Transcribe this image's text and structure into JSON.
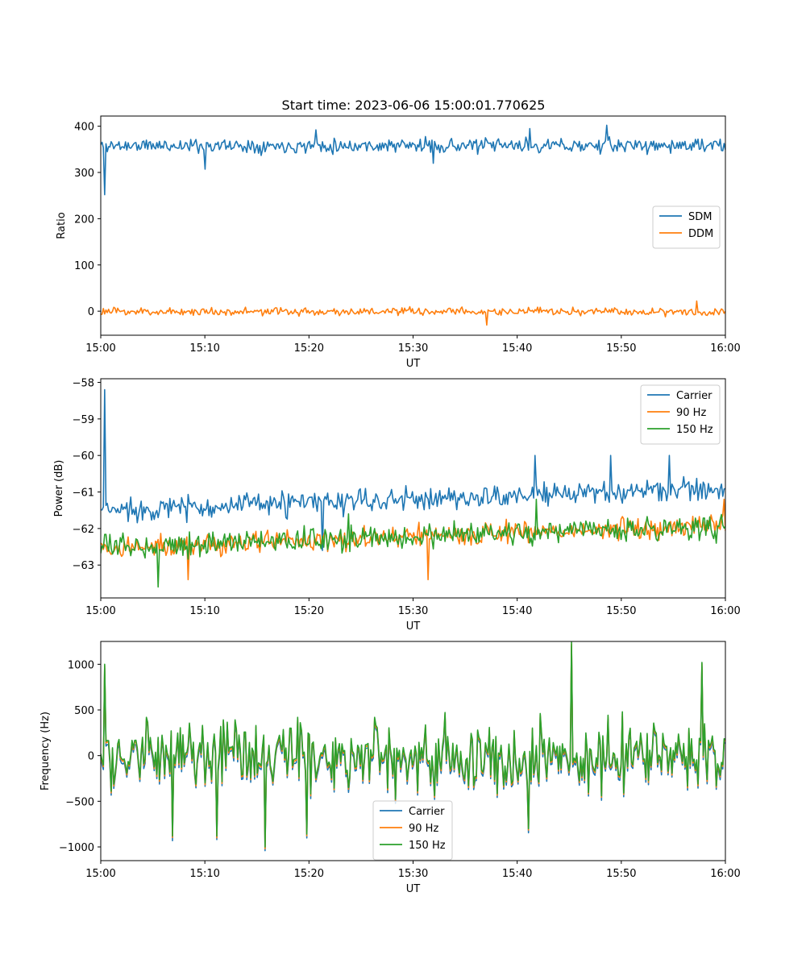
{
  "figure": {
    "title": "Start time: 2023-06-06 15:00:01.770625"
  },
  "chart_data": [
    {
      "type": "line",
      "xlabel": "UT",
      "ylabel": "Ratio",
      "xlim": [
        "15:00",
        "16:00"
      ],
      "ylim": [
        -52,
        422
      ],
      "xticks": [
        "15:00",
        "15:10",
        "15:20",
        "15:30",
        "15:40",
        "15:50",
        "16:00"
      ],
      "yticks": [
        0,
        100,
        200,
        300,
        400
      ],
      "yticklabels": [
        "0",
        "100",
        "200",
        "300",
        "400"
      ],
      "legend_position": "center-right",
      "series": [
        {
          "name": "SDM",
          "color": "#1f77b4",
          "mean": 358,
          "noise": 14,
          "seed": 11,
          "features": [
            {
              "t": 0.35,
              "v": 252
            },
            {
              "t": 10.0,
              "v": 307
            },
            {
              "t": 20.7,
              "v": 392
            },
            {
              "t": 41.2,
              "v": 395
            },
            {
              "t": 48.6,
              "v": 402
            },
            {
              "t": 32.0,
              "v": 320
            }
          ]
        },
        {
          "name": "DDM",
          "color": "#ff7f0e",
          "mean": -1,
          "noise": 8,
          "seed": 23,
          "features": [
            {
              "t": 37.1,
              "v": -30
            },
            {
              "t": 57.3,
              "v": 22
            }
          ]
        }
      ]
    },
    {
      "type": "line",
      "xlabel": "UT",
      "ylabel": "Power (dB)",
      "xlim": [
        "15:00",
        "16:00"
      ],
      "ylim": [
        -63.9,
        -57.9
      ],
      "xticks": [
        "15:00",
        "15:10",
        "15:20",
        "15:30",
        "15:40",
        "15:50",
        "16:00"
      ],
      "yticks": [
        -63,
        -62,
        -61,
        -60,
        -59,
        -58
      ],
      "yticklabels": [
        "−63",
        "−62",
        "−61",
        "−60",
        "−59",
        "−58"
      ],
      "legend_position": "upper-right",
      "series": [
        {
          "name": "Carrier",
          "color": "#1f77b4",
          "start": -61.5,
          "end": -60.9,
          "noise": 0.3,
          "seed": 37,
          "features": [
            {
              "t": 0.35,
              "v": -58.2
            },
            {
              "t": 41.7,
              "v": -60.0
            },
            {
              "t": 49.0,
              "v": -60.0
            },
            {
              "t": 54.6,
              "v": -60.0
            },
            {
              "t": 21.3,
              "v": -62.6
            }
          ]
        },
        {
          "name": "90 Hz",
          "color": "#ff7f0e",
          "start": -62.55,
          "end": -61.9,
          "noise": 0.28,
          "seed": 41,
          "features": [
            {
              "t": 31.4,
              "v": -63.4
            },
            {
              "t": 8.4,
              "v": -63.4
            },
            {
              "t": 59.9,
              "v": -61.2
            }
          ]
        },
        {
          "name": "150 Hz",
          "color": "#2ca02c",
          "start": -62.5,
          "end": -61.95,
          "noise": 0.3,
          "seed": 53,
          "features": [
            {
              "t": 5.5,
              "v": -63.6
            },
            {
              "t": 41.8,
              "v": -61.2
            },
            {
              "t": 23.8,
              "v": -61.6
            }
          ]
        }
      ]
    },
    {
      "type": "line",
      "xlabel": "UT",
      "ylabel": "Frequency (Hz)",
      "xlim": [
        "15:00",
        "16:00"
      ],
      "ylim": [
        -1150,
        1250
      ],
      "xticks": [
        "15:00",
        "15:10",
        "15:20",
        "15:30",
        "15:40",
        "15:50",
        "16:00"
      ],
      "yticks": [
        -1000,
        -500,
        0,
        500,
        1000
      ],
      "yticklabels": [
        "−1000",
        "−500",
        "0",
        "500",
        "1000"
      ],
      "legend_position": "lower-center",
      "series": [
        {
          "name": "Carrier",
          "color": "#1f77b4",
          "offset": -45
        },
        {
          "name": "90 Hz",
          "color": "#ff7f0e",
          "offset": -18
        },
        {
          "name": "150 Hz",
          "color": "#2ca02c",
          "offset": 0
        }
      ],
      "base": {
        "mean": 10,
        "noise": 330,
        "seed": 71,
        "features": [
          {
            "t": 45.2,
            "v": 1240
          },
          {
            "t": 57.8,
            "v": 1020
          },
          {
            "t": 0.4,
            "v": 1000
          },
          {
            "t": 15.8,
            "v": -1000
          },
          {
            "t": 11.2,
            "v": -880
          },
          {
            "t": 6.9,
            "v": -880
          },
          {
            "t": 41.1,
            "v": -800
          },
          {
            "t": 19.8,
            "v": -860
          }
        ]
      }
    }
  ]
}
